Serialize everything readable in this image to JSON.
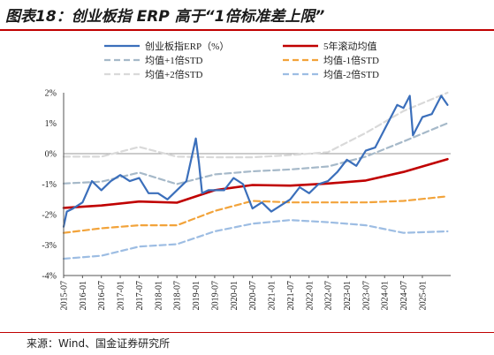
{
  "header": {
    "title": "图表18：创业板指 ERP 高于“1倍标准差上限”"
  },
  "footer": {
    "source": "来源：Wind、国金证券研究所"
  },
  "chart_data": {
    "type": "line",
    "ylim": [
      -4,
      2
    ],
    "yticks": [
      "2%",
      "1%",
      "0%",
      "-1%",
      "-2%",
      "-3%",
      "-4%"
    ],
    "xlim": [
      "2015-07",
      "2025-10"
    ],
    "xticks": [
      "2015-07",
      "2016-01",
      "2016-07",
      "2017-01",
      "2017-07",
      "2018-01",
      "2018-07",
      "2019-01",
      "2019-07",
      "2020-01",
      "2020-07",
      "2021-01",
      "2021-07",
      "2022-01",
      "2022-07",
      "2023-01",
      "2023-07",
      "2024-01",
      "2024-07",
      "2025-01"
    ],
    "colors": {
      "erp": "#3b6fbb",
      "ma5": "#c00000",
      "plus1": "#a6b9c9",
      "minus1": "#f2a33a",
      "plus2": "#d9d9d9",
      "minus2": "#9dbde3"
    },
    "series": [
      {
        "key": "erp",
        "name": "创业板指ERP（%）",
        "style": "solid",
        "x": [
          "2015-07",
          "2015-08",
          "2015-10",
          "2016-01",
          "2016-04",
          "2016-07",
          "2016-10",
          "2017-01",
          "2017-04",
          "2017-07",
          "2017-10",
          "2018-01",
          "2018-04",
          "2018-07",
          "2018-10",
          "2019-01",
          "2019-02",
          "2019-03",
          "2019-05",
          "2019-07",
          "2019-10",
          "2020-01",
          "2020-04",
          "2020-07",
          "2020-10",
          "2021-01",
          "2021-04",
          "2021-07",
          "2021-10",
          "2022-01",
          "2022-04",
          "2022-07",
          "2022-10",
          "2023-01",
          "2023-04",
          "2023-07",
          "2023-10",
          "2024-01",
          "2024-03",
          "2024-05",
          "2024-07",
          "2024-09",
          "2024-10",
          "2025-01",
          "2025-04",
          "2025-07",
          "2025-09"
        ],
        "values": [
          -2.4,
          -1.9,
          -1.8,
          -1.6,
          -0.9,
          -1.2,
          -0.9,
          -0.7,
          -0.9,
          -0.8,
          -1.3,
          -1.3,
          -1.5,
          -1.2,
          -0.9,
          0.5,
          -0.3,
          -1.3,
          -1.2,
          -1.2,
          -1.2,
          -0.8,
          -1.0,
          -1.8,
          -1.6,
          -1.9,
          -1.7,
          -1.5,
          -1.1,
          -1.3,
          -1.0,
          -0.9,
          -0.6,
          -0.2,
          -0.4,
          0.1,
          0.2,
          0.8,
          1.2,
          1.6,
          1.5,
          1.9,
          0.6,
          1.2,
          1.3,
          1.9,
          1.6
        ]
      },
      {
        "key": "ma5",
        "name": "5年滚动均值",
        "style": "solid",
        "x": [
          "2015-07",
          "2016-07",
          "2017-07",
          "2018-07",
          "2019-07",
          "2020-07",
          "2021-07",
          "2022-07",
          "2023-07",
          "2024-07",
          "2025-01",
          "2025-09"
        ],
        "values": [
          -1.78,
          -1.7,
          -1.57,
          -1.61,
          -1.2,
          -1.03,
          -1.05,
          -0.98,
          -0.88,
          -0.6,
          -0.42,
          -0.18
        ]
      },
      {
        "key": "plus1",
        "name": "均值+1倍STD",
        "style": "dashed",
        "x": [
          "2015-07",
          "2016-07",
          "2017-07",
          "2018-07",
          "2019-07",
          "2020-07",
          "2021-07",
          "2022-07",
          "2023-07",
          "2024-07",
          "2025-09"
        ],
        "values": [
          -0.98,
          -0.92,
          -0.62,
          -1.0,
          -0.68,
          -0.58,
          -0.52,
          -0.42,
          -0.1,
          0.4,
          1.0
        ]
      },
      {
        "key": "minus1",
        "name": "均值-1倍STD",
        "style": "dashed",
        "x": [
          "2015-07",
          "2016-07",
          "2017-07",
          "2018-07",
          "2019-07",
          "2020-07",
          "2021-07",
          "2022-07",
          "2023-07",
          "2024-07",
          "2025-09"
        ],
        "values": [
          -2.6,
          -2.45,
          -2.35,
          -2.35,
          -1.88,
          -1.55,
          -1.6,
          -1.6,
          -1.6,
          -1.55,
          -1.4
        ]
      },
      {
        "key": "plus2",
        "name": "均值+2倍STD",
        "style": "dashed",
        "x": [
          "2015-07",
          "2016-07",
          "2017-07",
          "2018-07",
          "2019-07",
          "2020-07",
          "2021-07",
          "2022-07",
          "2023-07",
          "2024-07",
          "2025-09"
        ],
        "values": [
          -0.1,
          -0.1,
          0.22,
          -0.1,
          -0.12,
          -0.12,
          -0.05,
          0.05,
          0.68,
          1.4,
          2.0
        ]
      },
      {
        "key": "minus2",
        "name": "均值-2倍STD",
        "style": "dashed",
        "x": [
          "2015-07",
          "2016-07",
          "2017-07",
          "2018-07",
          "2019-07",
          "2020-07",
          "2021-07",
          "2022-07",
          "2023-07",
          "2024-07",
          "2025-09"
        ],
        "values": [
          -3.45,
          -3.35,
          -3.05,
          -2.97,
          -2.55,
          -2.3,
          -2.18,
          -2.25,
          -2.35,
          -2.6,
          -2.55
        ]
      }
    ]
  }
}
